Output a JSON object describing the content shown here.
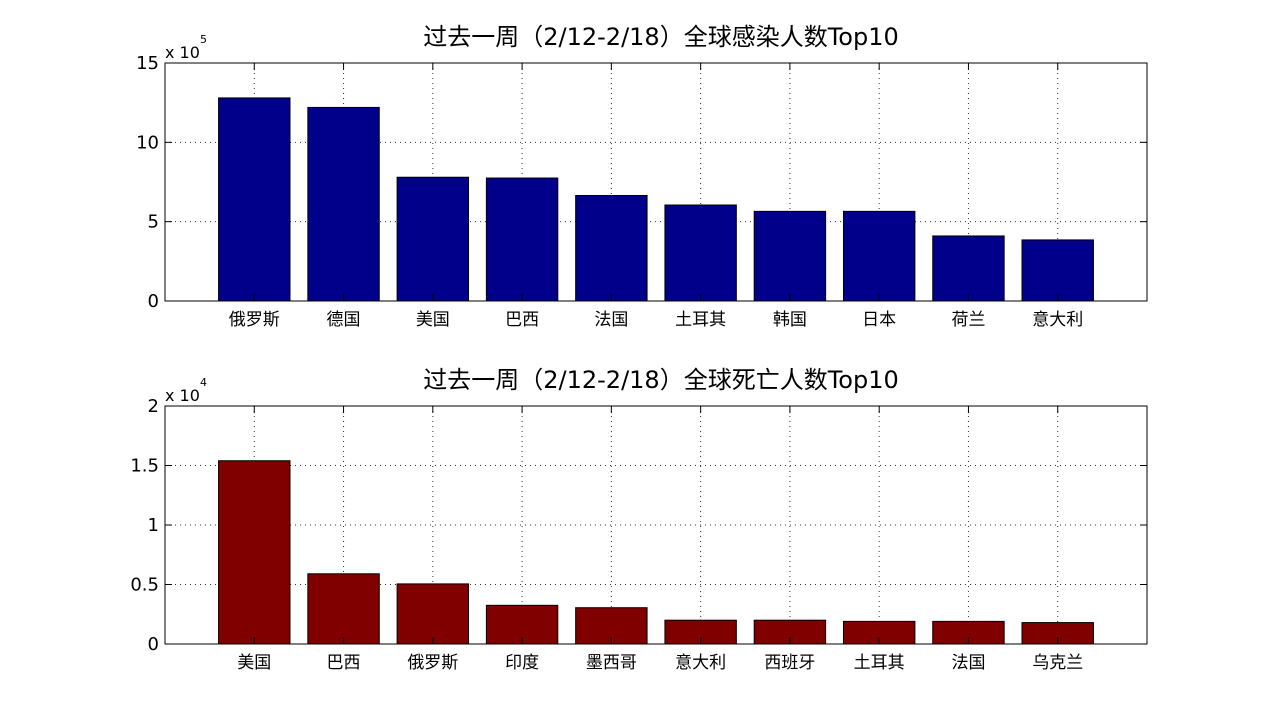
{
  "chart_data": [
    {
      "type": "bar",
      "title": "过去一周（2/12-2/18）全球感染人数Top10",
      "multiplier_label": "x 10",
      "multiplier_exp": "5",
      "scale": 100000,
      "ylim": [
        0,
        1500000
      ],
      "yticks": [
        0,
        500000,
        1000000,
        1500000
      ],
      "ytick_labels": [
        "0",
        "5",
        "10",
        "15"
      ],
      "grid": true,
      "color": "#00008B",
      "categories": [
        "俄罗斯",
        "德国",
        "美国",
        "巴西",
        "法国",
        "土耳其",
        "韩国",
        "日本",
        "荷兰",
        "意大利"
      ],
      "values": [
        1280000,
        1220000,
        780000,
        775000,
        665000,
        605000,
        565000,
        565000,
        410000,
        385000
      ]
    },
    {
      "type": "bar",
      "title": "过去一周（2/12-2/18）全球死亡人数Top10",
      "multiplier_label": "x 10",
      "multiplier_exp": "4",
      "scale": 10000,
      "ylim": [
        0,
        20000
      ],
      "yticks": [
        0,
        5000,
        10000,
        15000,
        20000
      ],
      "ytick_labels": [
        "0",
        "0.5",
        "1",
        "1.5",
        "2"
      ],
      "grid": true,
      "color": "#800000",
      "categories": [
        "美国",
        "巴西",
        "俄罗斯",
        "印度",
        "墨西哥",
        "意大利",
        "西班牙",
        "土耳其",
        "法国",
        "乌克兰"
      ],
      "values": [
        15400,
        5900,
        5050,
        3250,
        3050,
        2000,
        2000,
        1900,
        1900,
        1800
      ]
    }
  ]
}
